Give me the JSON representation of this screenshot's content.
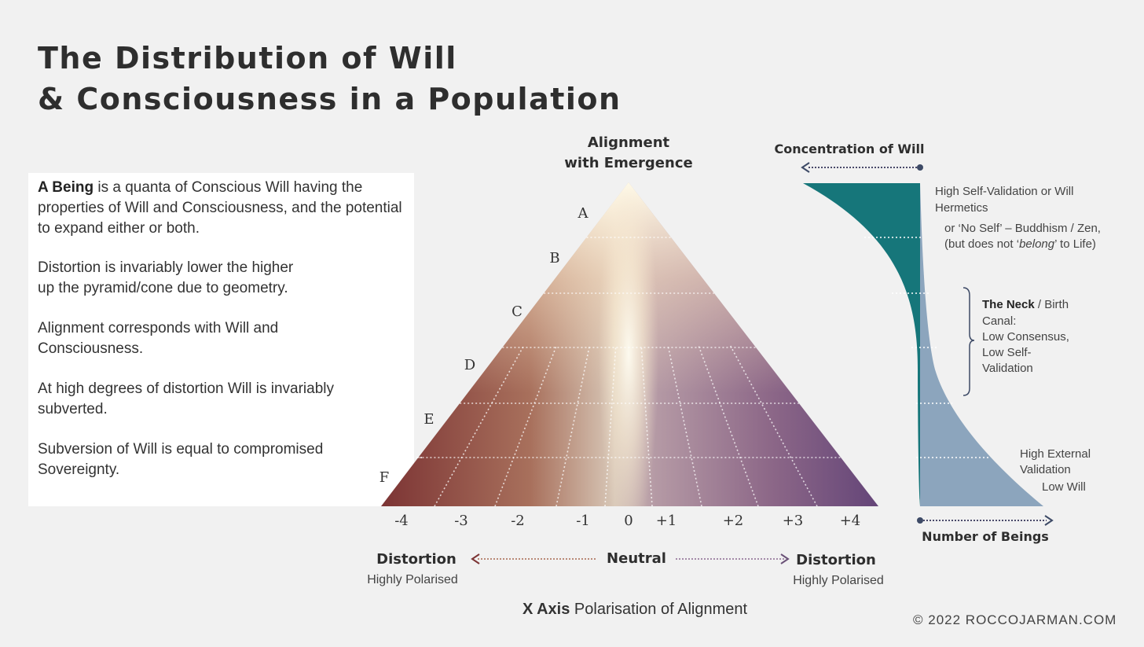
{
  "title": {
    "line1": "The Distribution of Will",
    "line2": "& Consciousness in a Population"
  },
  "textbox": {
    "p1_bold": "A Being",
    "p1_rest": " is a quanta of Conscious Will having the properties of Will and Consciousness, and the potential to expand either or both.",
    "p2_line1": "Distortion is invariably lower the higher",
    "p2_line2": "up the pyramid/cone due to geometry.",
    "p3": "Alignment corresponds with Will and Consciousness.",
    "p4": "At high degrees of distortion Will is invariably subverted.",
    "p5": "Subversion of Will is equal to compromised Sovereignty."
  },
  "pyramid": {
    "apex_line1": "Alignment",
    "apex_line2": "with Emergence",
    "levels": [
      "A",
      "B",
      "C",
      "D",
      "E",
      "F"
    ],
    "ticks": [
      "-4",
      "-3",
      "-2",
      "-1",
      "0",
      "+1",
      "+2",
      "+3",
      "+4"
    ],
    "colors": {
      "left": "#7c3434",
      "center": "#fff8e0",
      "right": "#644578",
      "apex": "#fffbea"
    }
  },
  "axis": {
    "left_title": "Distortion",
    "left_sub": "Highly Polarised",
    "center": "Neutral",
    "right_title": "Distortion",
    "right_sub": "Highly Polarised",
    "xaxis_bold": "X Axis",
    "xaxis_rest": " Polarisation of Alignment"
  },
  "will_chart": {
    "top_label": "Concentration of Will",
    "bottom_label": "Number of Beings",
    "colors": {
      "will": "#16767a",
      "beings": "#8ca5bd"
    },
    "ann1_line1": "High Self-Validation or Will",
    "ann1_line2": "Hermetics",
    "ann2_line1": "or ‘No Self’ – Buddhism / Zen,",
    "ann2_line2_a": "(but does not ‘",
    "ann2_line2_em": "belong",
    "ann2_line2_b": "’ to Life)",
    "neck_bold": "The Neck",
    "neck_rest": " / Birth",
    "neck_line2": "Canal:",
    "neck_line3": "Low Consensus,",
    "neck_line4": "Low Self-",
    "neck_line5": "Validation",
    "ann4_line1": "High External",
    "ann4_line2": "Validation",
    "ann4_line3": "Low Will"
  },
  "copyright": "© 2022 ROCCOJARMAN.COM"
}
